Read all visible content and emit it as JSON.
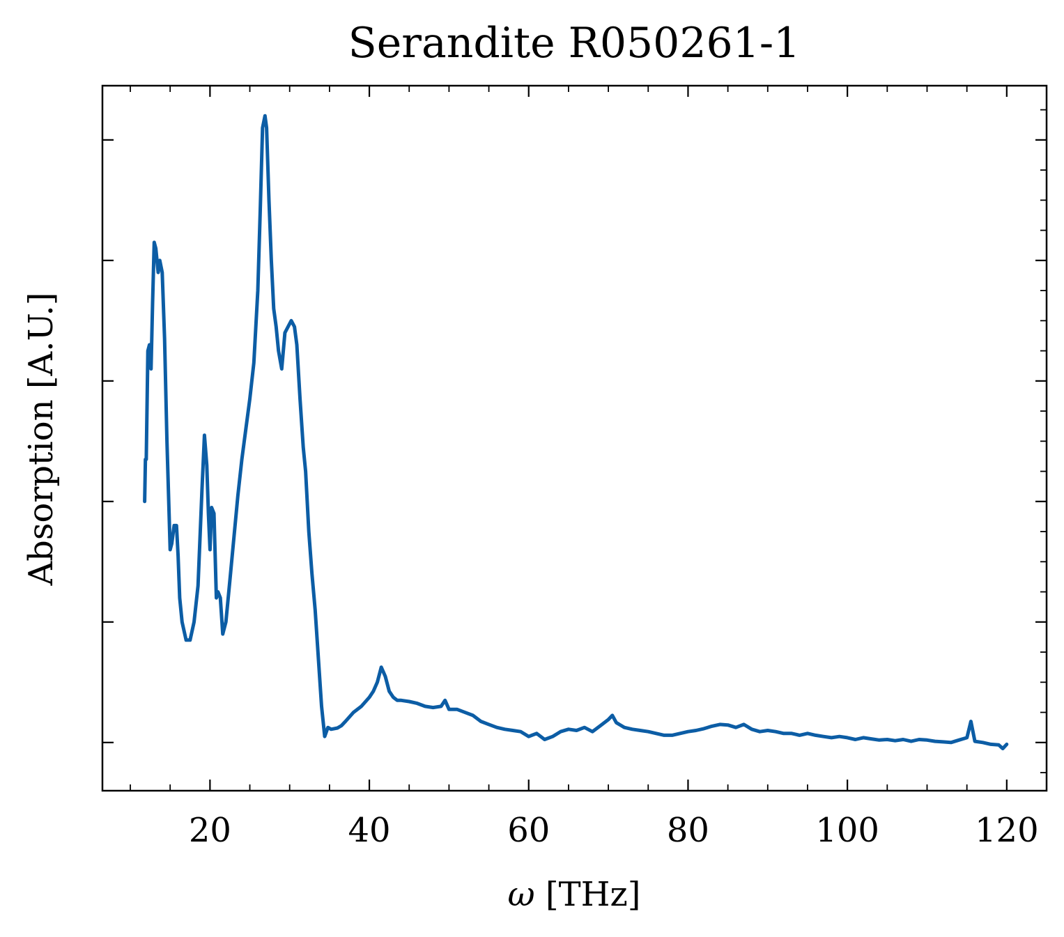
{
  "chart_data": {
    "type": "line",
    "title": "Serandite R050261-1",
    "xlabel_symbol": "ω",
    "xlabel_unit": "[THz]",
    "ylabel": "Absorption [A.U.]",
    "xlim": [
      6.5,
      125
    ],
    "ylim": [
      -0.08,
      1.09
    ],
    "x_ticks": [
      20,
      40,
      60,
      80,
      100,
      120
    ],
    "x_tick_labels": [
      "20",
      "40",
      "60",
      "80",
      "100",
      "120"
    ],
    "y_major_ticks": [
      0.0,
      0.2,
      0.4,
      0.6,
      0.8,
      1.0
    ],
    "y_tick_labels_visible": false,
    "ticks_direction": "in",
    "minor_ticks": true,
    "grid": false,
    "line_color": "#0c5da5",
    "series": [
      {
        "x": [
          11.8,
          11.9,
          12.0,
          12.2,
          12.4,
          12.6,
          12.8,
          13.0,
          13.2,
          13.5,
          13.7,
          14.0,
          14.3,
          14.6,
          15.0,
          15.2,
          15.5,
          15.8,
          16.0,
          16.2,
          16.5,
          17.0,
          17.5,
          18.0,
          18.5,
          19.0,
          19.3,
          19.6,
          19.8,
          20.0,
          20.2,
          20.5,
          20.8,
          21.0,
          21.3,
          21.6,
          22.0,
          22.5,
          23.0,
          23.5,
          24.0,
          24.5,
          25.0,
          25.5,
          26.0,
          26.3,
          26.6,
          26.9,
          27.1,
          27.4,
          27.7,
          28.0,
          28.3,
          28.6,
          29.0,
          29.4,
          29.8,
          30.2,
          30.6,
          30.9,
          31.3,
          31.7,
          32.0,
          32.4,
          32.8,
          33.2,
          33.6,
          34.0,
          34.4,
          34.8,
          35.2,
          35.6,
          36.0,
          36.5,
          37.0,
          38.0,
          39.0,
          40.0,
          40.5,
          41.0,
          41.5,
          42.0,
          42.5,
          43.0,
          43.5,
          44.0,
          45.0,
          46.0,
          47.0,
          48.0,
          49.0,
          49.5,
          50.0,
          51.0,
          52.0,
          53.0,
          54.0,
          55.0,
          56.0,
          57.0,
          58.0,
          59.0,
          60.0,
          61.0,
          62.0,
          63.0,
          64.0,
          65.0,
          66.0,
          67.0,
          68.0,
          69.0,
          70.0,
          70.5,
          71.0,
          72.0,
          73.0,
          74.0,
          75.0,
          76.0,
          77.0,
          78.0,
          79.0,
          80.0,
          81.0,
          82.0,
          83.0,
          84.0,
          85.0,
          86.0,
          87.0,
          88.0,
          89.0,
          90.0,
          91.0,
          92.0,
          93.0,
          94.0,
          95.0,
          96.0,
          97.0,
          98.0,
          99.0,
          100.0,
          101.0,
          102.0,
          103.0,
          104.0,
          105.0,
          106.0,
          107.0,
          108.0,
          109.0,
          110.0,
          111.0,
          112.0,
          113.0,
          114.0,
          115.0,
          115.5,
          116.0,
          117.0,
          118.0,
          119.0,
          119.5,
          120.0
        ],
        "y": [
          0.4,
          0.47,
          0.47,
          0.65,
          0.66,
          0.62,
          0.73,
          0.83,
          0.82,
          0.78,
          0.8,
          0.78,
          0.67,
          0.5,
          0.32,
          0.33,
          0.36,
          0.36,
          0.31,
          0.24,
          0.2,
          0.17,
          0.17,
          0.2,
          0.26,
          0.42,
          0.51,
          0.46,
          0.38,
          0.32,
          0.39,
          0.38,
          0.24,
          0.25,
          0.24,
          0.18,
          0.2,
          0.27,
          0.34,
          0.41,
          0.47,
          0.52,
          0.57,
          0.63,
          0.75,
          0.88,
          1.02,
          1.04,
          1.02,
          0.9,
          0.8,
          0.72,
          0.69,
          0.65,
          0.62,
          0.68,
          0.69,
          0.7,
          0.69,
          0.66,
          0.57,
          0.49,
          0.45,
          0.35,
          0.28,
          0.22,
          0.14,
          0.06,
          0.01,
          0.025,
          0.022,
          0.023,
          0.024,
          0.028,
          0.035,
          0.05,
          0.06,
          0.075,
          0.085,
          0.1,
          0.125,
          0.11,
          0.085,
          0.075,
          0.07,
          0.07,
          0.068,
          0.065,
          0.06,
          0.058,
          0.06,
          0.07,
          0.055,
          0.055,
          0.05,
          0.045,
          0.035,
          0.03,
          0.025,
          0.022,
          0.02,
          0.018,
          0.01,
          0.015,
          0.005,
          0.01,
          0.018,
          0.022,
          0.02,
          0.025,
          0.018,
          0.028,
          0.038,
          0.045,
          0.033,
          0.025,
          0.022,
          0.02,
          0.018,
          0.015,
          0.012,
          0.012,
          0.015,
          0.018,
          0.02,
          0.023,
          0.027,
          0.03,
          0.029,
          0.025,
          0.03,
          0.022,
          0.018,
          0.02,
          0.018,
          0.015,
          0.015,
          0.012,
          0.015,
          0.012,
          0.01,
          0.008,
          0.01,
          0.008,
          0.005,
          0.008,
          0.006,
          0.004,
          0.005,
          0.003,
          0.005,
          0.002,
          0.005,
          0.004,
          0.002,
          0.001,
          0.0,
          0.004,
          0.008,
          0.035,
          0.002,
          0.0,
          -0.003,
          -0.004,
          -0.01,
          -0.003
        ]
      }
    ]
  }
}
